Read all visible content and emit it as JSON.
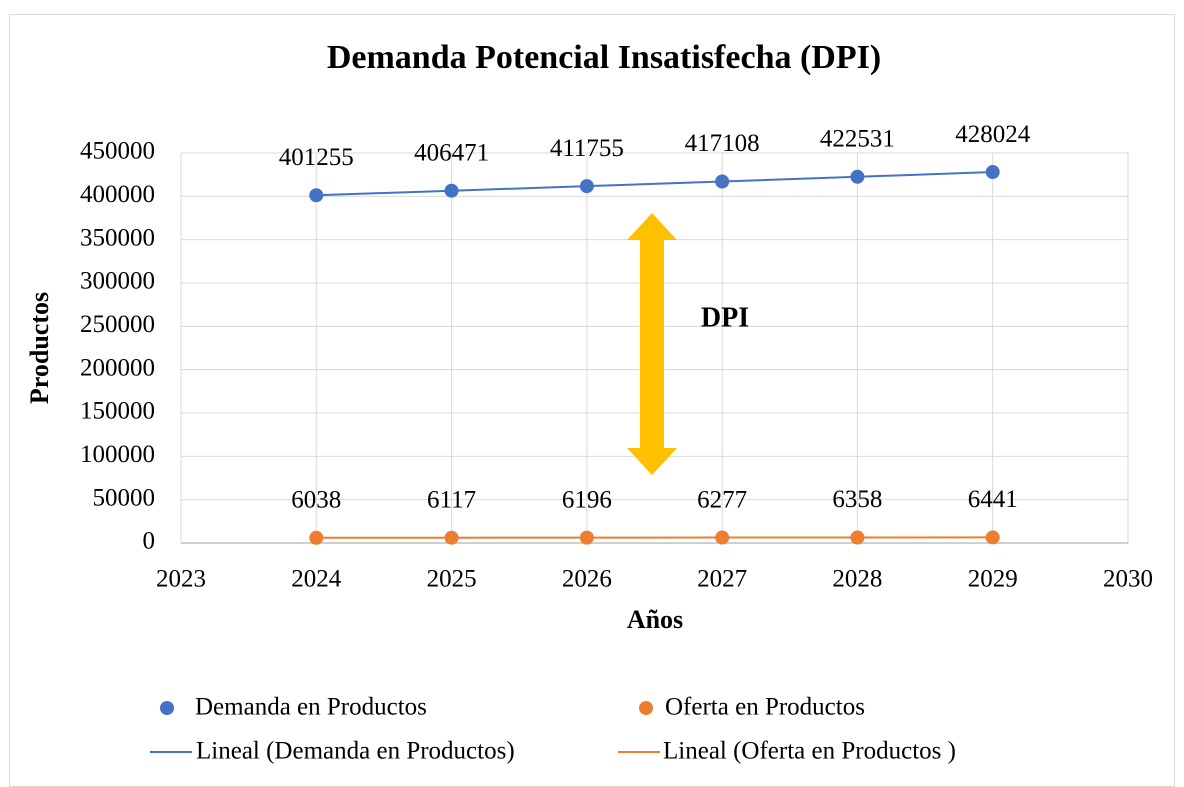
{
  "chart_data": {
    "type": "scatter",
    "title": "Demanda Potencial Insatisfecha (DPI)",
    "x_label": "Años",
    "y_label": "Productos",
    "annotation": "DPI",
    "x": [
      2024,
      2025,
      2026,
      2027,
      2028,
      2029
    ],
    "series": [
      {
        "name": "Demanda en Productos",
        "color": "#4472c4",
        "trendline": "Lineal (Demanda en Productos)",
        "values": [
          401255,
          406471,
          411755,
          417108,
          422531,
          428024
        ]
      },
      {
        "name": "Oferta en Productos",
        "color": "#ed7d31",
        "trendline": "Lineal (Oferta en Productos )",
        "values": [
          6038,
          6117,
          6196,
          6277,
          6358,
          6441
        ]
      }
    ],
    "xlim": [
      2023,
      2030
    ],
    "xticks": [
      2023,
      2024,
      2025,
      2026,
      2027,
      2028,
      2029,
      2030
    ],
    "ylim": [
      0,
      450000
    ],
    "yticks": [
      0,
      50000,
      100000,
      150000,
      200000,
      250000,
      300000,
      350000,
      400000,
      450000
    ],
    "grid": true,
    "legend": "bottom"
  }
}
